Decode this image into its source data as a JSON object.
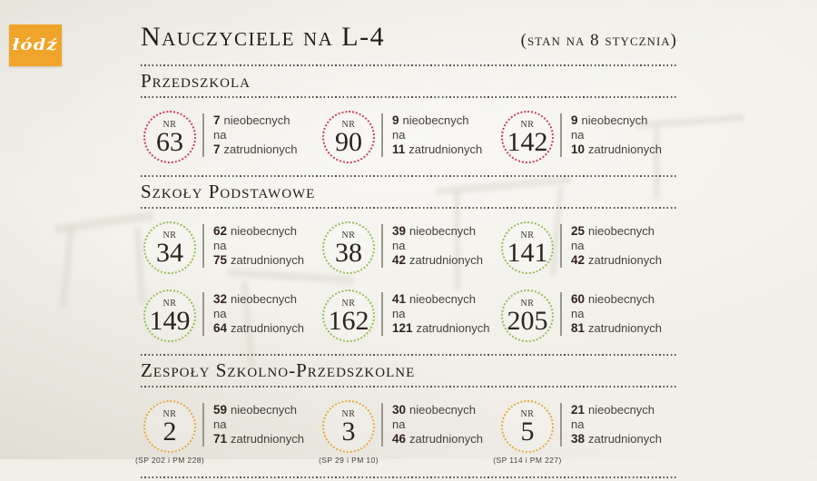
{
  "logo": {
    "text": "łódź"
  },
  "header": {
    "title": "Nauczyciele na L-4",
    "subtitle": "(stan na 8 stycznia)"
  },
  "labels": {
    "nr": "NR",
    "absent_word": "nieobecnych",
    "na_word": "na",
    "employed_word": "zatrudnionych"
  },
  "colors": {
    "przedszkola_accent": "#c73e56",
    "podstawowe_accent": "#96bd55",
    "zespoly_accent": "#e7a83f",
    "logo_orange": "#f0a42a"
  },
  "sections": [
    {
      "heading": "Przedszkola",
      "accent": "#c73e56",
      "rows": [
        [
          {
            "nr": "63",
            "absent": "7",
            "employed": "7",
            "caption": ""
          },
          {
            "nr": "90",
            "absent": "9",
            "employed": "11",
            "caption": ""
          },
          {
            "nr": "142",
            "absent": "9",
            "employed": "10",
            "caption": ""
          }
        ]
      ]
    },
    {
      "heading": "Szkoły Podstawowe",
      "accent": "#96bd55",
      "rows": [
        [
          {
            "nr": "34",
            "absent": "62",
            "employed": "75",
            "caption": ""
          },
          {
            "nr": "38",
            "absent": "39",
            "employed": "42",
            "caption": ""
          },
          {
            "nr": "141",
            "absent": "25",
            "employed": "42",
            "caption": ""
          }
        ],
        [
          {
            "nr": "149",
            "absent": "32",
            "employed": "64",
            "caption": ""
          },
          {
            "nr": "162",
            "absent": "41",
            "employed": "121",
            "caption": ""
          },
          {
            "nr": "205",
            "absent": "60",
            "employed": "81",
            "caption": ""
          }
        ]
      ]
    },
    {
      "heading": "Zespoły Szkolno-Przedszkolne",
      "accent": "#e7a83f",
      "rows": [
        [
          {
            "nr": "2",
            "absent": "59",
            "employed": "71",
            "caption": "(SP 202 i PM 228)"
          },
          {
            "nr": "3",
            "absent": "30",
            "employed": "46",
            "caption": "(SP 29 i PM 10)"
          },
          {
            "nr": "5",
            "absent": "21",
            "employed": "38",
            "caption": "(SP 114 i PM 227)"
          }
        ]
      ]
    }
  ]
}
